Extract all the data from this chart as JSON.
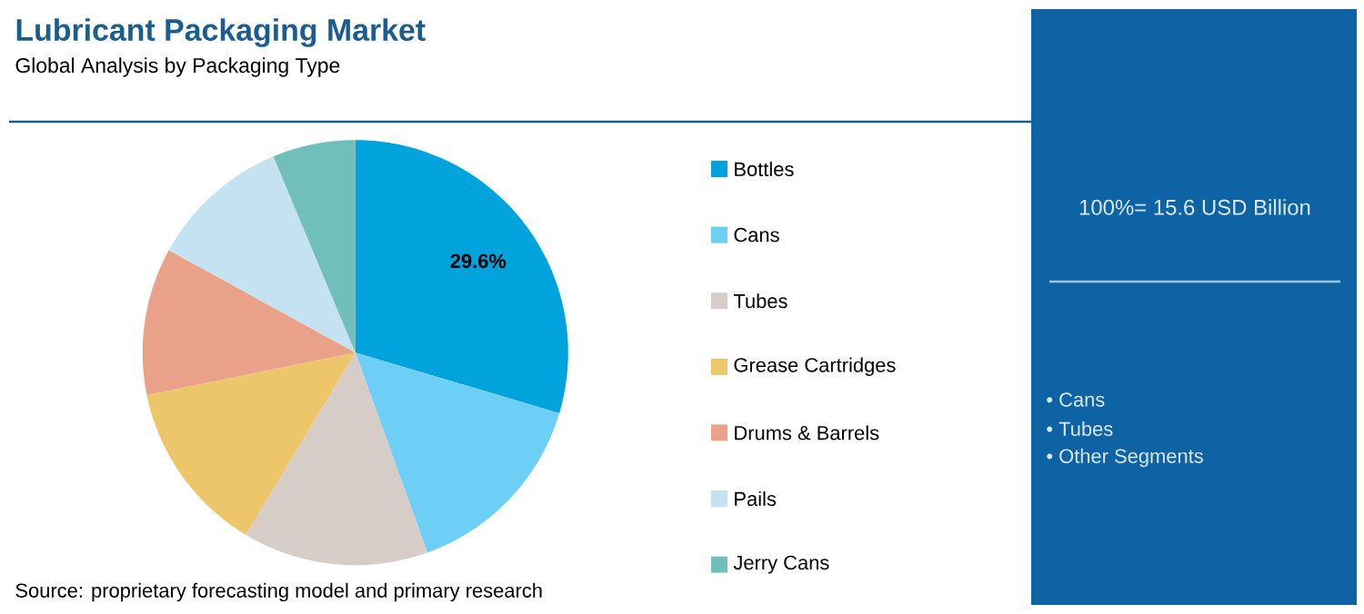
{
  "chart_data": {
    "type": "pie",
    "title": "Lubricant Packaging Market",
    "subtitle": "Global Analysis by Packaging Type",
    "categories": [
      "Bottles",
      "Cans",
      "Tubes",
      "Grease Cartridges",
      "Drums & Barrels",
      "Pails",
      "Jerry Cans"
    ],
    "values": [
      29.6,
      14.9,
      14.1,
      13.2,
      11.2,
      10.7,
      6.3
    ],
    "colors": [
      "#00a3dc",
      "#6dcff6",
      "#d6cdc8",
      "#eec66a",
      "#e9a18a",
      "#c5e2f2",
      "#71bfbb"
    ],
    "value_labels": [
      "29.6%",
      null,
      null,
      null,
      null,
      null,
      null
    ],
    "legend": "right",
    "annotations": [
      "100%= 15.6 USD Billion",
      "• Cans",
      "• Tubes",
      "• Other Segments",
      "Source: proprietary forecasting model and primary research"
    ]
  }
}
